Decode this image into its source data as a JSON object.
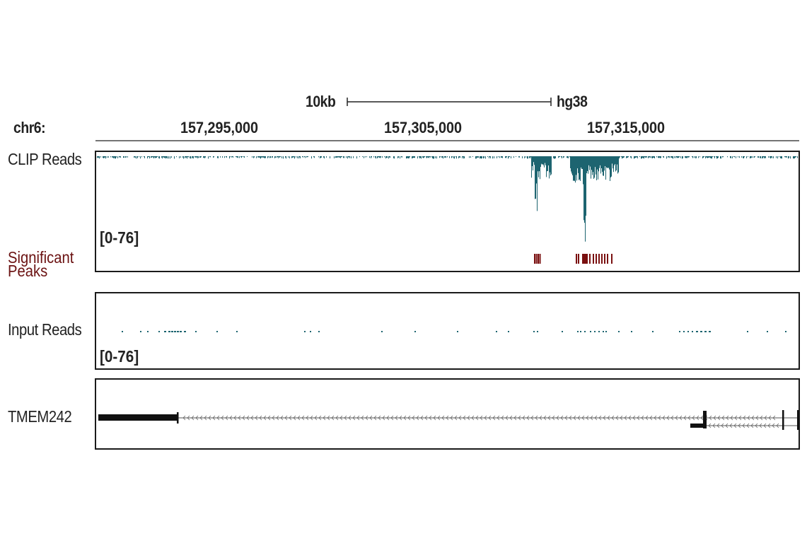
{
  "scale": {
    "label": "10kb",
    "genome": "hg38"
  },
  "chromosome": "chr6:",
  "ruler_ticks": [
    "157,295,000",
    "157,305,000",
    "157,315,000"
  ],
  "tracks": {
    "clip": {
      "label": "CLIP Reads",
      "range": "[0-76]",
      "color": "#1d6470"
    },
    "peaks": {
      "label_line1": "Significant",
      "label_line2": "Peaks",
      "color": "#7a1010"
    },
    "input": {
      "label": "Input Reads",
      "range": "[0-76]",
      "color": "#1d6470"
    },
    "gene": {
      "label": "TMEM242"
    }
  }
}
